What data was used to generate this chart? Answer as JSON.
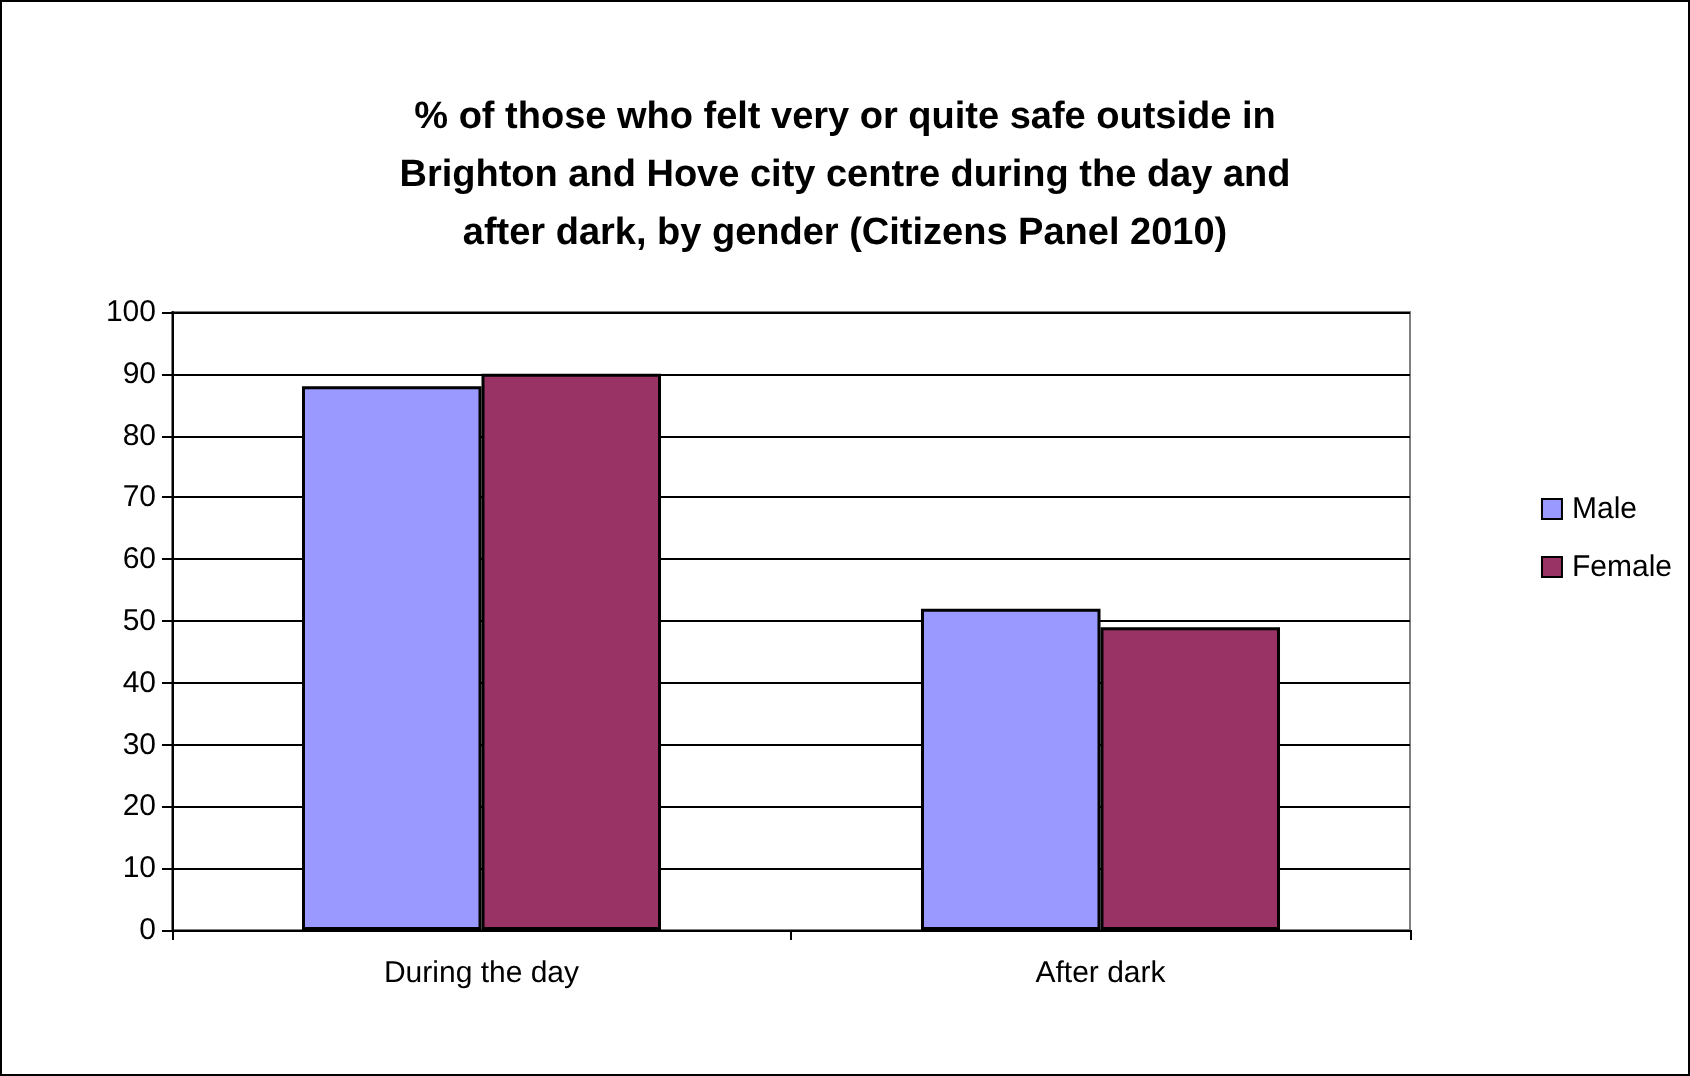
{
  "chart_data": {
    "type": "bar",
    "title": "% of those who felt very or quite safe outside in\nBrighton and Hove city centre during the day and\nafter dark, by gender (Citizens Panel 2010)",
    "categories": [
      "During the day",
      "After dark"
    ],
    "series": [
      {
        "name": "Male",
        "color": "#9999ff",
        "values": [
          88,
          52
        ]
      },
      {
        "name": "Female",
        "color": "#993366",
        "values": [
          90,
          49
        ]
      }
    ],
    "ylim": [
      0,
      100
    ],
    "yticks": [
      0,
      10,
      20,
      30,
      40,
      50,
      60,
      70,
      80,
      90,
      100
    ],
    "grid": "y",
    "legend": "right"
  }
}
